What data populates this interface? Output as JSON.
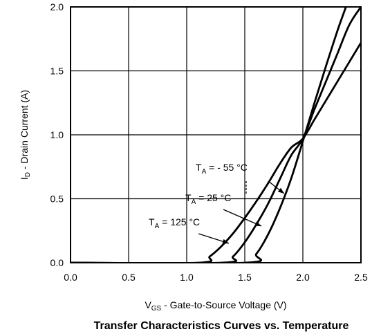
{
  "chart_data": {
    "type": "line",
    "title": "Transfer Characteristics Curves vs. Temperature",
    "xlabel": {
      "sym": "V",
      "sub": "GS",
      "rest": " - Gate-to-Source Voltage (V)"
    },
    "ylabel": {
      "sym": "I",
      "sub": "D",
      "rest": " - Drain Current (A)"
    },
    "xlim": [
      0,
      2.5
    ],
    "ylim": [
      0,
      2.0
    ],
    "xticks": [
      "0.0",
      "0.5",
      "1.0",
      "1.5",
      "2.0",
      "2.5"
    ],
    "yticks": [
      "0.0",
      "0.5",
      "1.0",
      "1.5",
      "2.0"
    ],
    "grid": true,
    "series": [
      {
        "name": {
          "sym": "T",
          "sub": "A",
          "rest": " = - 55 °C"
        },
        "x": [
          1.5,
          1.6,
          1.7,
          1.8,
          1.9,
          2.0,
          2.1,
          2.2,
          2.3,
          2.4,
          2.44
        ],
        "y": [
          0.0,
          0.07,
          0.22,
          0.42,
          0.66,
          0.95,
          1.25,
          1.54,
          1.82,
          2.08,
          2.0
        ]
      },
      {
        "name": {
          "sym": "T",
          "sub": "A",
          "rest": " = 25 °C"
        },
        "x": [
          1.3,
          1.4,
          1.5,
          1.6,
          1.7,
          1.8,
          1.9,
          2.0,
          2.1,
          2.2,
          2.3,
          2.4,
          2.5
        ],
        "y": [
          0.0,
          0.05,
          0.16,
          0.3,
          0.46,
          0.65,
          0.84,
          0.97,
          1.2,
          1.42,
          1.64,
          1.86,
          2.0
        ]
      },
      {
        "name": {
          "sym": "T",
          "sub": "A",
          "rest": " = 125 °C"
        },
        "x": [
          1.1,
          1.2,
          1.3,
          1.4,
          1.5,
          1.6,
          1.7,
          1.8,
          1.9,
          2.0,
          2.1,
          2.2,
          2.3,
          2.4,
          2.5
        ],
        "y": [
          0.0,
          0.05,
          0.13,
          0.23,
          0.35,
          0.48,
          0.62,
          0.77,
          0.9,
          0.97,
          1.12,
          1.27,
          1.42,
          1.57,
          1.72
        ]
      }
    ]
  }
}
